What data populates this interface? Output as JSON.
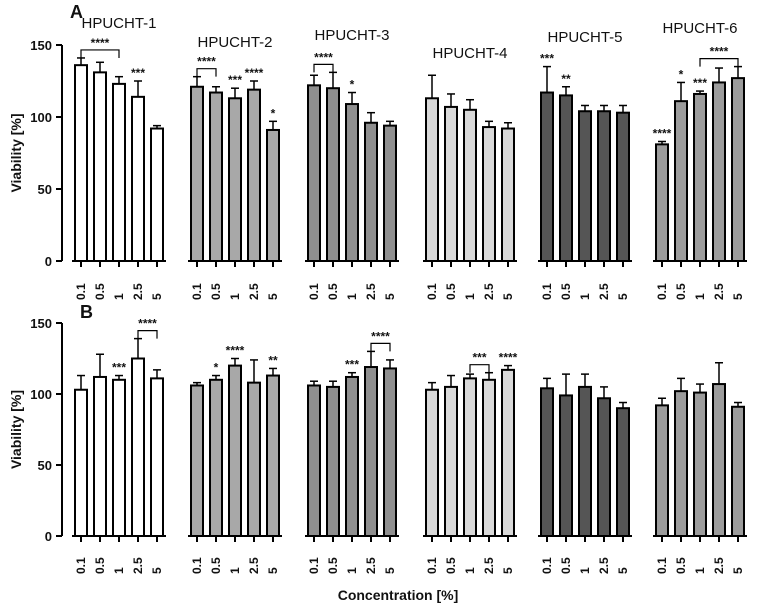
{
  "chart_data": [
    {
      "type": "bar",
      "panel": "A",
      "ylabel": "Viability [%]",
      "ylim": [
        0,
        150
      ],
      "yticks": [
        0,
        50,
        100,
        150
      ],
      "categories": [
        "0.1",
        "0.5",
        "1",
        "2.5",
        "5"
      ],
      "group_labels": [
        "HPUCHT-1",
        "HPUCHT-2",
        "HPUCHT-3",
        "HPUCHT-4",
        "HPUCHT-5",
        "HPUCHT-6"
      ],
      "series": [
        {
          "name": "HPUCHT-1",
          "color": "#ffffff",
          "values": [
            136,
            131,
            123,
            114,
            92
          ],
          "errors": [
            5,
            7,
            5,
            11,
            2
          ],
          "sig": [
            "",
            "",
            "",
            "***",
            ""
          ],
          "bracket": {
            "from": 0,
            "to": 2,
            "label": "****"
          }
        },
        {
          "name": "HPUCHT-2",
          "color": "#a8a8a8",
          "values": [
            121,
            117,
            113,
            119,
            91
          ],
          "errors": [
            7,
            4,
            7,
            6,
            6
          ],
          "sig": [
            "",
            "",
            "***",
            "****",
            "*"
          ],
          "bracket": {
            "from": 0,
            "to": 1,
            "label": "****"
          }
        },
        {
          "name": "HPUCHT-3",
          "color": "#8f8f8f",
          "values": [
            122,
            120,
            109,
            96,
            94
          ],
          "errors": [
            7,
            11,
            8,
            7,
            3
          ],
          "sig": [
            "",
            "",
            "*",
            "",
            ""
          ],
          "bracket": {
            "from": 0,
            "to": 1,
            "label": "****"
          }
        },
        {
          "name": "HPUCHT-4",
          "color": "#d9d9d9",
          "values": [
            113,
            107,
            105,
            93,
            92
          ],
          "errors": [
            16,
            9,
            7,
            4,
            4
          ],
          "sig": [
            "",
            "",
            "",
            "",
            ""
          ],
          "bracket": null
        },
        {
          "name": "HPUCHT-5",
          "color": "#555555",
          "values": [
            117,
            115,
            104,
            104,
            103
          ],
          "errors": [
            18,
            6,
            4,
            4,
            5
          ],
          "sig": [
            "***",
            "**",
            "",
            "",
            ""
          ],
          "bracket": null
        },
        {
          "name": "HPUCHT-6",
          "color": "#9c9c9c",
          "values": [
            81,
            111,
            116,
            124,
            127
          ],
          "errors": [
            2,
            13,
            2,
            10,
            8
          ],
          "sig": [
            "****",
            "*",
            "***",
            "",
            ""
          ],
          "bracket": {
            "from": 2,
            "to": 4,
            "label": "****"
          }
        }
      ]
    },
    {
      "type": "bar",
      "panel": "B",
      "ylabel": "Viability [%]",
      "xlabel": "Concentration [%]",
      "ylim": [
        0,
        150
      ],
      "yticks": [
        0,
        50,
        100,
        150
      ],
      "categories": [
        "0.1",
        "0.5",
        "1",
        "2.5",
        "5"
      ],
      "series": [
        {
          "name": "HPUCHT-1",
          "color": "#ffffff",
          "values": [
            103,
            112,
            110,
            125,
            111
          ],
          "errors": [
            10,
            16,
            3,
            14,
            6
          ],
          "sig": [
            "",
            "",
            "***",
            "",
            ""
          ],
          "bracket": {
            "from": 3,
            "to": 4,
            "label": "****"
          }
        },
        {
          "name": "HPUCHT-2",
          "color": "#a8a8a8",
          "values": [
            106,
            110,
            120,
            108,
            113
          ],
          "errors": [
            2,
            3,
            5,
            16,
            5
          ],
          "sig": [
            "",
            "*",
            "****",
            "",
            "**"
          ],
          "bracket": null
        },
        {
          "name": "HPUCHT-3",
          "color": "#8f8f8f",
          "values": [
            106,
            105,
            112,
            119,
            118
          ],
          "errors": [
            3,
            4,
            3,
            11,
            6
          ],
          "sig": [
            "",
            "",
            "***",
            "",
            ""
          ],
          "bracket": {
            "from": 3,
            "to": 4,
            "label": "****"
          }
        },
        {
          "name": "HPUCHT-4",
          "color": "#d9d9d9",
          "values": [
            103,
            105,
            111,
            110,
            117
          ],
          "errors": [
            5,
            8,
            3,
            5,
            3
          ],
          "sig": [
            "",
            "",
            "",
            "",
            "****"
          ],
          "bracket": {
            "from": 2,
            "to": 3,
            "label": "***"
          }
        },
        {
          "name": "HPUCHT-5",
          "color": "#555555",
          "values": [
            104,
            99,
            105,
            97,
            90
          ],
          "errors": [
            7,
            15,
            9,
            8,
            4
          ],
          "sig": [
            "",
            "",
            "",
            "",
            ""
          ],
          "bracket": null
        },
        {
          "name": "HPUCHT-6",
          "color": "#9c9c9c",
          "values": [
            92,
            102,
            101,
            107,
            91
          ],
          "errors": [
            5,
            9,
            6,
            15,
            3
          ],
          "sig": [
            "",
            "",
            "",
            "",
            ""
          ],
          "bracket": null
        }
      ]
    }
  ]
}
